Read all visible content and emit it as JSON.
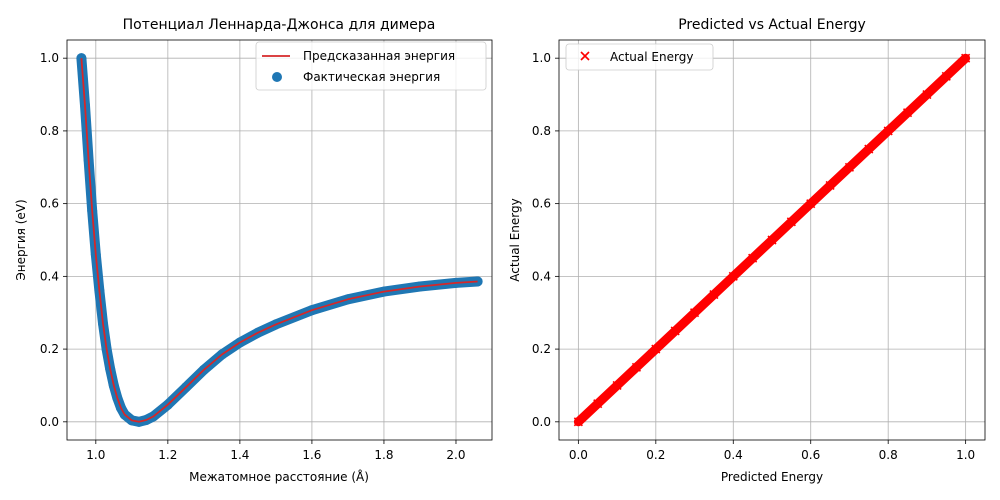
{
  "charts": [
    {
      "title": "Потенциал Леннарда-Джонса для димера",
      "xlabel": "Межатомное расстояние (Å)",
      "ylabel": "Энергия (eV)",
      "legend": {
        "position": "top-right",
        "items": [
          {
            "label": "Предсказанная энергия",
            "kind": "line",
            "color": "#d62728"
          },
          {
            "label": "Фактическая энергия",
            "kind": "dot",
            "color": "#1f77b4"
          }
        ]
      }
    },
    {
      "title": "Predicted vs Actual Energy",
      "xlabel": "Predicted Energy",
      "ylabel": "Actual Energy",
      "legend": {
        "position": "top-left",
        "items": [
          {
            "label": "Actual Energy",
            "kind": "x",
            "color": "#ff0000"
          }
        ]
      }
    }
  ],
  "chart_data": [
    {
      "type": "scatter",
      "title": "Потенциал Леннарда-Джонса для димера",
      "xlabel": "Межатомное расстояние (Å)",
      "ylabel": "Энергия (eV)",
      "xlim": [
        0.92,
        2.1
      ],
      "ylim": [
        -0.05,
        1.05
      ],
      "xticks": [
        "1.0",
        "1.2",
        "1.4",
        "1.6",
        "1.8",
        "2.0"
      ],
      "xtick_values": [
        1.0,
        1.2,
        1.4,
        1.6,
        1.8,
        2.0
      ],
      "yticks": [
        "0.0",
        "0.2",
        "0.4",
        "0.6",
        "0.8",
        "1.0"
      ],
      "ytick_values": [
        0.0,
        0.2,
        0.4,
        0.6,
        0.8,
        1.0
      ],
      "grid": true,
      "legend_position": "top-right",
      "series": [
        {
          "name": "Предсказанная энергия",
          "kind": "line",
          "color": "#d62728",
          "x": [
            0.96,
            0.97,
            0.98,
            0.99,
            1.0,
            1.01,
            1.02,
            1.03,
            1.04,
            1.05,
            1.06,
            1.07,
            1.08,
            1.1,
            1.12,
            1.14,
            1.16,
            1.2,
            1.25,
            1.3,
            1.35,
            1.4,
            1.45,
            1.5,
            1.6,
            1.7,
            1.8,
            1.9,
            2.0,
            2.06
          ],
          "y": [
            1.0,
            0.87,
            0.72,
            0.58,
            0.46,
            0.36,
            0.27,
            0.2,
            0.145,
            0.1,
            0.065,
            0.038,
            0.02,
            0.004,
            0.0,
            0.005,
            0.015,
            0.047,
            0.095,
            0.143,
            0.185,
            0.218,
            0.245,
            0.268,
            0.307,
            0.337,
            0.358,
            0.372,
            0.382,
            0.386
          ]
        },
        {
          "name": "Фактическая энергия",
          "kind": "scatter",
          "color": "#1f77b4",
          "x": [
            0.96,
            0.97,
            0.98,
            0.99,
            1.0,
            1.01,
            1.02,
            1.03,
            1.04,
            1.05,
            1.06,
            1.07,
            1.08,
            1.1,
            1.12,
            1.14,
            1.16,
            1.2,
            1.25,
            1.3,
            1.35,
            1.4,
            1.45,
            1.5,
            1.6,
            1.7,
            1.8,
            1.9,
            2.0,
            2.06
          ],
          "y": [
            1.0,
            0.87,
            0.72,
            0.58,
            0.46,
            0.36,
            0.27,
            0.2,
            0.145,
            0.1,
            0.065,
            0.038,
            0.02,
            0.004,
            0.0,
            0.005,
            0.015,
            0.047,
            0.095,
            0.143,
            0.185,
            0.218,
            0.245,
            0.268,
            0.307,
            0.337,
            0.358,
            0.372,
            0.382,
            0.386
          ]
        }
      ]
    },
    {
      "type": "scatter",
      "title": "Predicted vs Actual Energy",
      "xlabel": "Predicted Energy",
      "ylabel": "Actual Energy",
      "xlim": [
        -0.05,
        1.05
      ],
      "ylim": [
        -0.05,
        1.05
      ],
      "xticks": [
        "0.0",
        "0.2",
        "0.4",
        "0.6",
        "0.8",
        "1.0"
      ],
      "xtick_values": [
        0.0,
        0.2,
        0.4,
        0.6,
        0.8,
        1.0
      ],
      "yticks": [
        "0.0",
        "0.2",
        "0.4",
        "0.6",
        "0.8",
        "1.0"
      ],
      "ytick_values": [
        0.0,
        0.2,
        0.4,
        0.6,
        0.8,
        1.0
      ],
      "grid": true,
      "legend_position": "top-left",
      "series": [
        {
          "name": "Actual Energy",
          "kind": "x-marker",
          "color": "#ff0000",
          "x": [
            0.0,
            0.05,
            0.1,
            0.15,
            0.2,
            0.25,
            0.3,
            0.35,
            0.4,
            0.45,
            0.5,
            0.55,
            0.6,
            0.65,
            0.7,
            0.75,
            0.8,
            0.85,
            0.9,
            0.95,
            1.0
          ],
          "y": [
            0.0,
            0.05,
            0.1,
            0.15,
            0.2,
            0.25,
            0.3,
            0.35,
            0.4,
            0.45,
            0.5,
            0.55,
            0.6,
            0.65,
            0.7,
            0.75,
            0.8,
            0.85,
            0.9,
            0.95,
            1.0
          ]
        }
      ]
    }
  ]
}
